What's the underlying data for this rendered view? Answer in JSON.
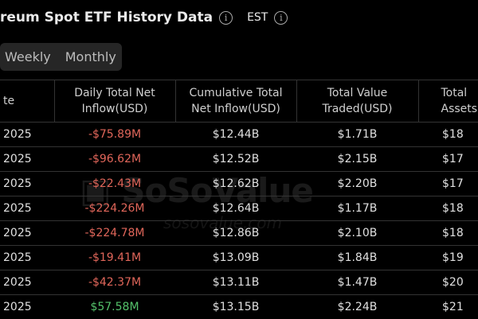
{
  "header": {
    "title": "reum Spot ETF History Data",
    "timezone": "EST"
  },
  "tabs": [
    {
      "label": "Weekly"
    },
    {
      "label": "Monthly"
    }
  ],
  "table": {
    "columns": [
      "te",
      "Daily Total Net Inflow(USD)",
      "Cumulative Total Net Inflow(USD)",
      "Total Value Traded(USD)",
      "Total Assets"
    ],
    "rows": [
      {
        "date": "2025",
        "inflow": "-$75.89M",
        "cumulative": "$12.44B",
        "traded": "$1.71B",
        "assets": "$18"
      },
      {
        "date": "2025",
        "inflow": "-$96.62M",
        "cumulative": "$12.52B",
        "traded": "$2.15B",
        "assets": "$17"
      },
      {
        "date": "2025",
        "inflow": "-$22.43M",
        "cumulative": "$12.62B",
        "traded": "$2.20B",
        "assets": "$17"
      },
      {
        "date": "2025",
        "inflow": "-$224.26M",
        "cumulative": "$12.64B",
        "traded": "$1.17B",
        "assets": "$18"
      },
      {
        "date": "2025",
        "inflow": "-$224.78M",
        "cumulative": "$12.86B",
        "traded": "$2.10B",
        "assets": "$18"
      },
      {
        "date": "2025",
        "inflow": "-$19.41M",
        "cumulative": "$13.09B",
        "traded": "$1.84B",
        "assets": "$19"
      },
      {
        "date": "2025",
        "inflow": "-$42.37M",
        "cumulative": "$13.11B",
        "traded": "$1.47B",
        "assets": "$20"
      },
      {
        "date": "2025",
        "inflow": "$57.58M",
        "cumulative": "$13.15B",
        "traded": "$2.24B",
        "assets": "$21"
      }
    ]
  },
  "watermark": {
    "logo": "SoSoValue",
    "url": "sosovalue.com"
  },
  "colors": {
    "negative": "#e0665a",
    "positive": "#54c26a",
    "background": "#000000"
  }
}
